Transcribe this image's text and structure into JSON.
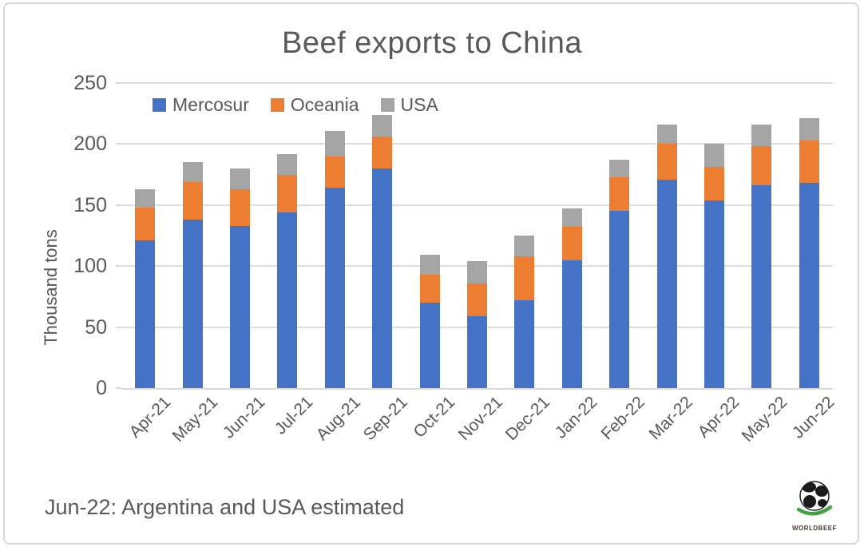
{
  "chart_data": {
    "type": "bar",
    "stacked": true,
    "title": "Beef exports to China",
    "xlabel": "",
    "ylabel": "Thousand tons",
    "ylim": [
      0,
      250
    ],
    "yticks": [
      0,
      50,
      100,
      150,
      200,
      250
    ],
    "grid": true,
    "legend_position": "top-left",
    "categories": [
      "Apr-21",
      "May-21",
      "Jun-21",
      "Jul-21",
      "Aug-21",
      "Sep-21",
      "Oct-21",
      "Nov-21",
      "Dec-21",
      "Jan-22",
      "Feb-22",
      "Mar-22",
      "Apr-22",
      "May-22",
      "Jun-22"
    ],
    "series": [
      {
        "name": "Mercosur",
        "color": "#4472c4",
        "values": [
          121,
          138,
          133,
          144,
          164,
          180,
          70,
          59,
          72,
          105,
          145,
          171,
          154,
          166,
          168
        ]
      },
      {
        "name": "Oceania",
        "color": "#ed7d31",
        "values": [
          27,
          31,
          30,
          31,
          26,
          26,
          23,
          27,
          36,
          27,
          28,
          29,
          27,
          32,
          35
        ]
      },
      {
        "name": "USA",
        "color": "#a5a5a5",
        "values": [
          15,
          16,
          17,
          17,
          21,
          18,
          16,
          18,
          17,
          15,
          14,
          16,
          19,
          18,
          18
        ]
      }
    ]
  },
  "footnote": "Jun-22: Argentina and USA estimated",
  "logo": {
    "icon": "globe-icon",
    "text": "WORLDBEEF",
    "arc_color": "#3fa33f"
  },
  "colors": {
    "text": "#595959",
    "gridline": "#dedede",
    "frame_border": "#d9d9d9"
  }
}
